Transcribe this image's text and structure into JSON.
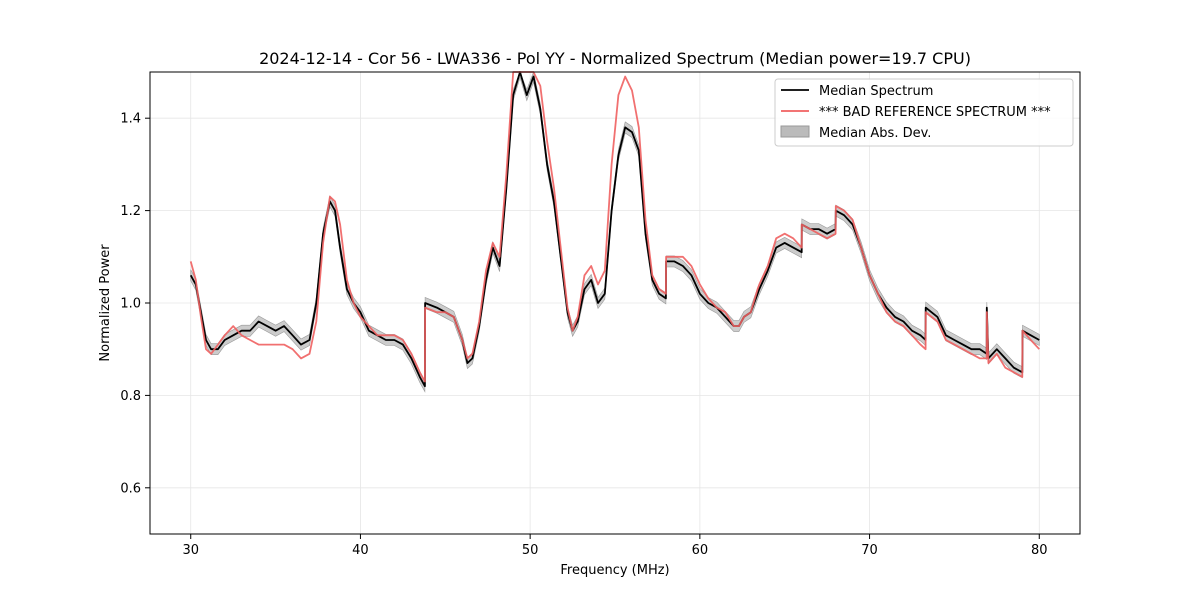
{
  "chart_data": {
    "type": "line",
    "title": "2024-12-14 - Cor 56 - LWA336 - Pol YY - Normalized Spectrum (Median power=19.7 CPU)",
    "xlabel": "Frequency (MHz)",
    "ylabel": "Normalized Power",
    "xlim": [
      27.6,
      82.4
    ],
    "ylim": [
      0.5,
      1.5
    ],
    "xticks": [
      30,
      40,
      50,
      60,
      70,
      80
    ],
    "yticks": [
      0.6,
      0.8,
      1.0,
      1.2,
      1.4
    ],
    "grid": true,
    "legend_position": "top-right",
    "series": [
      {
        "name": "Median Spectrum",
        "color": "#000000",
        "x": [
          30.0,
          30.3,
          30.6,
          30.9,
          31.2,
          31.6,
          32.0,
          32.5,
          33.0,
          33.5,
          34.0,
          34.5,
          35.0,
          35.5,
          36.0,
          36.5,
          37.0,
          37.4,
          37.8,
          38.2,
          38.5,
          38.8,
          39.2,
          39.6,
          40.0,
          40.5,
          41.0,
          41.5,
          42.0,
          42.5,
          43.0,
          43.5,
          43.8,
          43.81,
          44.5,
          45.0,
          45.5,
          46.0,
          46.3,
          46.6,
          47.0,
          47.4,
          47.8,
          48.2,
          48.6,
          49.0,
          49.4,
          49.8,
          50.2,
          50.6,
          51.0,
          51.4,
          51.8,
          52.2,
          52.5,
          52.8,
          53.2,
          53.6,
          54.0,
          54.4,
          54.8,
          55.2,
          55.6,
          56.0,
          56.4,
          56.8,
          57.2,
          57.6,
          58.0,
          58.01,
          58.5,
          59.0,
          59.5,
          60.0,
          60.5,
          61.0,
          61.5,
          62.0,
          62.3,
          62.6,
          63.0,
          63.4,
          63.5,
          64.0,
          64.5,
          65.0,
          65.5,
          66.0,
          66.01,
          66.5,
          67.0,
          67.5,
          68.0,
          68.01,
          68.5,
          69.0,
          69.5,
          70.0,
          70.5,
          71.0,
          71.5,
          72.0,
          72.5,
          73.0,
          73.3,
          73.31,
          74.0,
          74.5,
          75.0,
          75.5,
          76.0,
          76.5,
          76.9,
          76.91,
          77.0,
          77.5,
          78.0,
          78.5,
          79.0,
          79.01,
          79.5,
          80.0
        ],
        "values": [
          1.06,
          1.04,
          0.98,
          0.92,
          0.9,
          0.9,
          0.92,
          0.93,
          0.94,
          0.94,
          0.96,
          0.95,
          0.94,
          0.95,
          0.93,
          0.91,
          0.92,
          1.0,
          1.15,
          1.22,
          1.2,
          1.12,
          1.03,
          1.0,
          0.98,
          0.94,
          0.93,
          0.92,
          0.92,
          0.91,
          0.88,
          0.84,
          0.82,
          1.0,
          0.99,
          0.98,
          0.97,
          0.92,
          0.87,
          0.88,
          0.95,
          1.05,
          1.12,
          1.08,
          1.25,
          1.45,
          1.5,
          1.45,
          1.49,
          1.42,
          1.3,
          1.22,
          1.1,
          0.98,
          0.94,
          0.96,
          1.03,
          1.05,
          1.0,
          1.02,
          1.2,
          1.32,
          1.38,
          1.37,
          1.33,
          1.15,
          1.05,
          1.02,
          1.01,
          1.09,
          1.09,
          1.08,
          1.06,
          1.02,
          1.0,
          0.99,
          0.97,
          0.95,
          0.95,
          0.97,
          0.98,
          1.02,
          1.03,
          1.07,
          1.12,
          1.13,
          1.12,
          1.11,
          1.17,
          1.16,
          1.16,
          1.15,
          1.16,
          1.2,
          1.19,
          1.17,
          1.12,
          1.06,
          1.02,
          0.99,
          0.97,
          0.96,
          0.94,
          0.93,
          0.92,
          0.99,
          0.97,
          0.93,
          0.92,
          0.91,
          0.9,
          0.9,
          0.89,
          0.99,
          0.88,
          0.9,
          0.88,
          0.86,
          0.85,
          0.94,
          0.93,
          0.92
        ]
      },
      {
        "name": "*** BAD REFERENCE SPECTRUM ***",
        "color": "#f06060",
        "x": [
          30.0,
          30.3,
          30.6,
          30.9,
          31.2,
          31.6,
          32.0,
          32.5,
          33.0,
          33.5,
          34.0,
          34.5,
          35.0,
          35.5,
          36.0,
          36.5,
          37.0,
          37.4,
          37.8,
          38.2,
          38.5,
          38.8,
          39.2,
          39.6,
          40.0,
          40.5,
          41.0,
          41.5,
          42.0,
          42.5,
          43.0,
          43.5,
          43.8,
          43.81,
          44.5,
          45.0,
          45.5,
          46.0,
          46.3,
          46.6,
          47.0,
          47.4,
          47.8,
          48.2,
          48.6,
          49.0,
          49.4,
          49.8,
          50.2,
          50.6,
          51.0,
          51.4,
          51.8,
          52.2,
          52.5,
          52.8,
          53.2,
          53.6,
          54.0,
          54.4,
          54.8,
          55.2,
          55.6,
          56.0,
          56.4,
          56.8,
          57.2,
          57.6,
          58.0,
          58.01,
          58.5,
          59.0,
          59.5,
          60.0,
          60.5,
          61.0,
          61.5,
          62.0,
          62.3,
          62.6,
          63.0,
          63.4,
          63.5,
          64.0,
          64.5,
          65.0,
          65.5,
          66.0,
          66.01,
          66.5,
          67.0,
          67.5,
          68.0,
          68.01,
          68.5,
          69.0,
          69.5,
          70.0,
          70.5,
          71.0,
          71.5,
          72.0,
          72.5,
          73.0,
          73.3,
          73.31,
          74.0,
          74.5,
          75.0,
          75.5,
          76.0,
          76.5,
          76.9,
          76.91,
          77.0,
          77.5,
          78.0,
          78.5,
          79.0,
          79.01,
          79.5,
          80.0
        ],
        "values": [
          1.09,
          1.05,
          0.97,
          0.9,
          0.89,
          0.91,
          0.93,
          0.95,
          0.93,
          0.92,
          0.91,
          0.91,
          0.91,
          0.91,
          0.9,
          0.88,
          0.89,
          0.96,
          1.13,
          1.23,
          1.22,
          1.17,
          1.05,
          1.0,
          0.97,
          0.95,
          0.93,
          0.93,
          0.93,
          0.92,
          0.89,
          0.85,
          0.83,
          0.99,
          0.98,
          0.98,
          0.97,
          0.92,
          0.88,
          0.89,
          0.96,
          1.07,
          1.13,
          1.1,
          1.28,
          1.5,
          1.5,
          1.5,
          1.5,
          1.47,
          1.35,
          1.25,
          1.12,
          0.99,
          0.94,
          0.97,
          1.06,
          1.08,
          1.04,
          1.07,
          1.3,
          1.45,
          1.49,
          1.46,
          1.38,
          1.18,
          1.06,
          1.03,
          1.02,
          1.1,
          1.1,
          1.1,
          1.08,
          1.04,
          1.01,
          0.99,
          0.98,
          0.95,
          0.95,
          0.97,
          0.98,
          1.03,
          1.04,
          1.08,
          1.14,
          1.15,
          1.14,
          1.12,
          1.17,
          1.16,
          1.15,
          1.14,
          1.15,
          1.21,
          1.2,
          1.18,
          1.12,
          1.06,
          1.02,
          0.98,
          0.96,
          0.95,
          0.93,
          0.91,
          0.9,
          0.98,
          0.96,
          0.92,
          0.91,
          0.9,
          0.89,
          0.88,
          0.88,
          0.98,
          0.87,
          0.89,
          0.86,
          0.85,
          0.84,
          0.94,
          0.92,
          0.9
        ]
      },
      {
        "name": "Median Abs. Dev.",
        "type": "band",
        "color": "#999999",
        "spread": 0.012
      }
    ]
  }
}
